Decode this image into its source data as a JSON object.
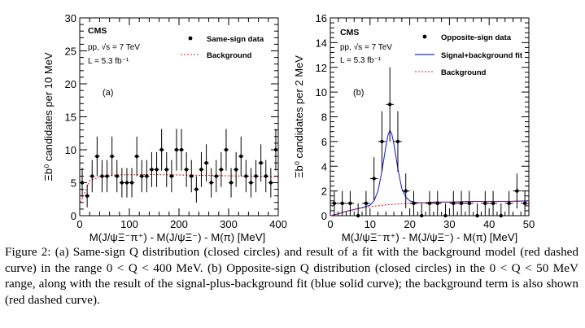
{
  "caption": {
    "label": "Figure 2:",
    "text": "(a) Same-sign Q distribution (closed circles) and result of a fit with the background model (red dashed curve) in the range 0 < Q < 400 MeV. (b) Opposite-sign Q distribution (closed circles) in the 0 < Q < 50 MeV range, along with the result of the signal-plus-background fit (blue solid curve); the background term is also shown (red dashed curve)."
  },
  "colors": {
    "data": "#000000",
    "fit": "#1f2ad1",
    "background": "#d8231f",
    "axis": "#000000"
  },
  "chart_data": [
    {
      "type": "scatter",
      "panel_label": "(a)",
      "ylabel": "Ξb⁰ candidates per 10 MeV",
      "xlabel": "M(J/ψΞ⁻π⁺) - M(J/ψΞ⁻) - M(π) [MeV]",
      "xlim": [
        0,
        400
      ],
      "ylim": [
        0,
        30
      ],
      "xticks": [
        0,
        100,
        200,
        300,
        400
      ],
      "xtick_labels": [
        "0",
        "100",
        "200",
        "300",
        "400"
      ],
      "yticks": [
        0,
        5,
        10,
        15,
        20,
        25,
        30
      ],
      "ytick_labels": [
        "0",
        "5",
        "10",
        "15",
        "20",
        "25",
        "30"
      ],
      "annotations": [
        "CMS",
        "pp, √s = 7 TeV",
        "L = 5.3 fb⁻¹"
      ],
      "legend": [
        "Same-sign data",
        "Background"
      ],
      "legend_position": "top-right",
      "series": [
        {
          "name": "Same-sign data",
          "style": "points-with-errors",
          "x": [
            5,
            15,
            25,
            35,
            45,
            55,
            65,
            75,
            85,
            95,
            105,
            115,
            125,
            135,
            145,
            155,
            165,
            175,
            185,
            195,
            205,
            215,
            225,
            235,
            245,
            255,
            265,
            275,
            285,
            295,
            305,
            315,
            325,
            335,
            345,
            355,
            365,
            375,
            385,
            395
          ],
          "y": [
            5,
            3,
            6,
            9,
            6,
            6,
            9,
            6,
            5,
            5,
            5,
            9,
            6,
            6,
            7,
            7,
            10,
            7,
            6,
            10,
            10,
            7,
            6,
            4,
            7,
            8,
            5,
            6,
            7,
            10,
            5,
            7,
            9,
            6,
            5,
            6,
            8,
            6,
            5,
            10
          ]
        },
        {
          "name": "Background",
          "style": "dashed-curve",
          "x": [
            2,
            20,
            40,
            60,
            80,
            100,
            140,
            180,
            220,
            260,
            300,
            340,
            380,
            400
          ],
          "y": [
            2.0,
            5.3,
            5.9,
            6.1,
            6.2,
            6.2,
            6.25,
            6.2,
            6.15,
            6.1,
            6.05,
            6.0,
            5.95,
            5.9
          ]
        }
      ]
    },
    {
      "type": "scatter",
      "panel_label": "(b)",
      "ylabel": "Ξb⁰ candidates per 2 MeV",
      "xlabel": "M(J/ψΞ⁻π⁺) - M(J/ψΞ⁻) - M(π) [MeV]",
      "xlim": [
        0,
        50
      ],
      "ylim": [
        0,
        16
      ],
      "xticks": [
        0,
        10,
        20,
        30,
        40,
        50
      ],
      "xtick_labels": [
        "0",
        "10",
        "20",
        "30",
        "40",
        "50"
      ],
      "yticks": [
        0,
        2,
        4,
        6,
        8,
        10,
        12,
        14,
        16
      ],
      "ytick_labels": [
        "0",
        "2",
        "4",
        "6",
        "8",
        "10",
        "12",
        "14",
        "16"
      ],
      "annotations": [
        "CMS",
        "pp, √s = 7 TeV",
        "L = 5.3 fb⁻¹"
      ],
      "legend": [
        "Opposite-sign data",
        "Signal+background fit",
        "Background"
      ],
      "legend_position": "top-right",
      "series": [
        {
          "name": "Opposite-sign data",
          "style": "points-with-errors",
          "x": [
            1,
            3,
            5,
            7,
            9,
            11,
            13,
            15,
            17,
            19,
            21,
            23,
            25,
            27,
            29,
            31,
            33,
            35,
            37,
            39,
            41,
            43,
            45,
            47,
            49
          ],
          "y": [
            1,
            1,
            1,
            0,
            1,
            3,
            6,
            9,
            6,
            2,
            1,
            0,
            1,
            1,
            0,
            1,
            1,
            1,
            0,
            1,
            1,
            0,
            1,
            2,
            1
          ]
        },
        {
          "name": "Signal+background fit",
          "style": "solid-curve",
          "x": [
            0,
            2,
            4,
            6,
            8,
            10,
            11,
            12,
            13,
            14,
            14.5,
            15,
            15.5,
            16,
            17,
            18,
            19,
            20,
            21,
            22,
            24,
            26,
            30,
            35,
            40,
            45,
            50
          ],
          "y": [
            0,
            0.15,
            0.35,
            0.5,
            0.65,
            0.85,
            1.2,
            2.0,
            3.6,
            5.6,
            6.5,
            6.9,
            6.6,
            5.8,
            3.8,
            2.2,
            1.5,
            1.2,
            1.1,
            1.05,
            1.05,
            1.1,
            1.1,
            1.15,
            1.15,
            1.15,
            1.2
          ]
        },
        {
          "name": "Background",
          "style": "dashed-curve",
          "x": [
            0,
            2,
            4,
            6,
            8,
            10,
            12,
            15,
            18,
            21,
            25,
            30,
            35,
            40,
            45,
            50
          ],
          "y": [
            0,
            0.15,
            0.35,
            0.5,
            0.62,
            0.72,
            0.8,
            0.9,
            0.97,
            1.02,
            1.07,
            1.1,
            1.13,
            1.15,
            1.16,
            1.17
          ]
        }
      ]
    }
  ]
}
